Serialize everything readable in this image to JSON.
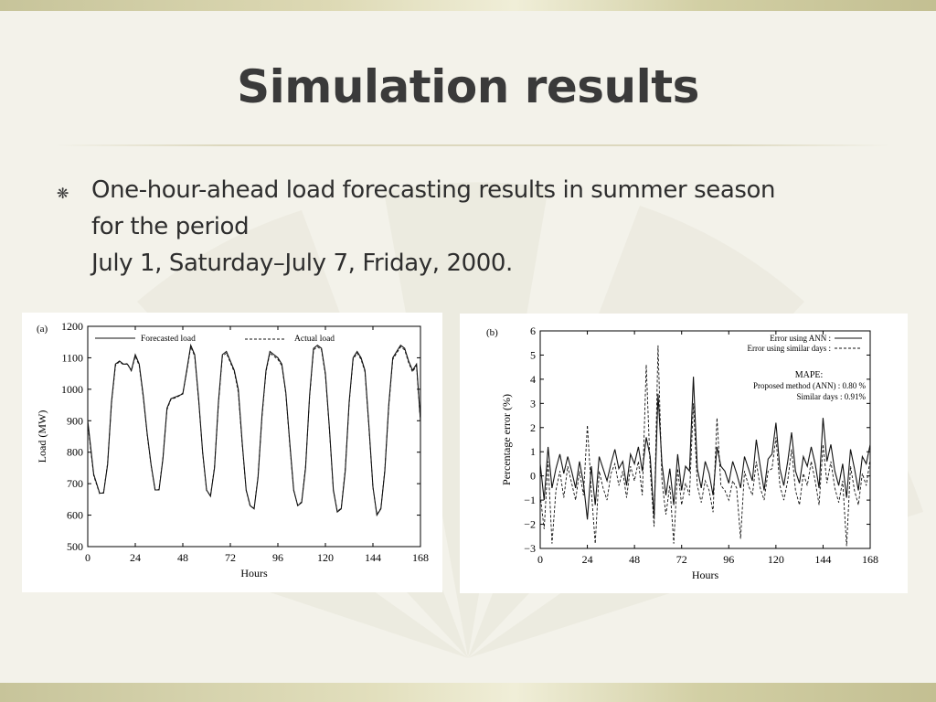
{
  "slide": {
    "title": "Simulation results",
    "bullet_symbol": "❋",
    "bullet_lines": [
      "One-hour-ahead load forecasting results in summer season",
      "for the period",
      "July 1, Saturday–July 7, Friday, 2000."
    ]
  },
  "colors": {
    "background": "#f3f2ea",
    "band": "#d2cfa4",
    "text": "#2e2e2e"
  },
  "chart_data": [
    {
      "type": "line",
      "panel_label": "(a)",
      "xlabel": "Hours",
      "ylabel": "Load (MW)",
      "xlim": [
        0,
        168
      ],
      "ylim": [
        500,
        1200
      ],
      "xticks": [
        0,
        24,
        48,
        72,
        96,
        120,
        144,
        168
      ],
      "yticks": [
        500,
        600,
        700,
        800,
        900,
        1000,
        1100,
        1200
      ],
      "legend": "top",
      "grid": false,
      "series": [
        {
          "name": "Forecasted load",
          "style": "solid",
          "x": [
            0,
            3,
            6,
            8,
            10,
            12,
            14,
            16,
            18,
            20,
            22,
            24,
            26,
            28,
            30,
            32,
            34,
            36,
            38,
            40,
            42,
            44,
            46,
            48,
            50,
            52,
            54,
            56,
            58,
            60,
            62,
            64,
            66,
            68,
            70,
            72,
            74,
            76,
            78,
            80,
            82,
            84,
            86,
            88,
            90,
            92,
            94,
            96,
            98,
            100,
            102,
            104,
            106,
            108,
            110,
            112,
            114,
            116,
            118,
            120,
            122,
            124,
            126,
            128,
            130,
            132,
            134,
            136,
            138,
            140,
            142,
            144,
            146,
            148,
            150,
            152,
            154,
            156,
            158,
            160,
            162,
            164,
            166,
            168
          ],
          "y": [
            900,
            730,
            670,
            670,
            760,
            960,
            1080,
            1090,
            1080,
            1080,
            1060,
            1110,
            1080,
            980,
            860,
            760,
            680,
            680,
            780,
            940,
            970,
            975,
            980,
            985,
            1060,
            1140,
            1110,
            970,
            800,
            680,
            660,
            750,
            960,
            1110,
            1120,
            1090,
            1060,
            1000,
            830,
            680,
            630,
            620,
            720,
            920,
            1060,
            1120,
            1110,
            1100,
            1080,
            990,
            830,
            680,
            630,
            640,
            750,
            980,
            1130,
            1140,
            1130,
            1050,
            880,
            680,
            610,
            620,
            740,
            960,
            1100,
            1120,
            1100,
            1060,
            880,
            690,
            600,
            620,
            740,
            950,
            1100,
            1120,
            1140,
            1130,
            1090,
            1060,
            1080,
            900
          ]
        },
        {
          "name": "Actual load",
          "style": "dashed",
          "x": [
            0,
            3,
            6,
            8,
            10,
            12,
            14,
            16,
            18,
            20,
            22,
            24,
            26,
            28,
            30,
            32,
            34,
            36,
            38,
            40,
            42,
            44,
            46,
            48,
            50,
            52,
            54,
            56,
            58,
            60,
            62,
            64,
            66,
            68,
            70,
            72,
            74,
            76,
            78,
            80,
            82,
            84,
            86,
            88,
            90,
            92,
            94,
            96,
            98,
            100,
            102,
            104,
            106,
            108,
            110,
            112,
            114,
            116,
            118,
            120,
            122,
            124,
            126,
            128,
            130,
            132,
            134,
            136,
            138,
            140,
            142,
            144,
            146,
            148,
            150,
            152,
            154,
            156,
            158,
            160,
            162,
            164,
            166,
            168
          ],
          "y": [
            890,
            725,
            668,
            672,
            765,
            955,
            1075,
            1088,
            1078,
            1082,
            1058,
            1105,
            1075,
            975,
            855,
            758,
            678,
            682,
            785,
            935,
            968,
            972,
            978,
            988,
            1055,
            1135,
            1105,
            965,
            798,
            678,
            662,
            755,
            955,
            1105,
            1115,
            1085,
            1055,
            990,
            825,
            678,
            628,
            622,
            725,
            915,
            1055,
            1115,
            1105,
            1095,
            1075,
            985,
            825,
            678,
            632,
            642,
            755,
            975,
            1125,
            1135,
            1125,
            1045,
            875,
            678,
            612,
            622,
            745,
            955,
            1095,
            1115,
            1095,
            1055,
            875,
            688,
            602,
            622,
            745,
            945,
            1095,
            1115,
            1135,
            1125,
            1085,
            1055,
            1075,
            895
          ]
        }
      ]
    },
    {
      "type": "line",
      "panel_label": "(b)",
      "xlabel": "Hours",
      "ylabel": "Percentage error (%)",
      "xlim": [
        0,
        168
      ],
      "ylim": [
        -3,
        6
      ],
      "xticks": [
        0,
        24,
        48,
        72,
        96,
        120,
        144,
        168
      ],
      "yticks": [
        -3,
        -2,
        -1,
        0,
        1,
        2,
        3,
        4,
        5,
        6
      ],
      "legend": "top-right",
      "grid": false,
      "annotation": {
        "heading": "MAPE:",
        "lines": [
          "Proposed method (ANN) : 0.80 %",
          "Similar days : 0.91%"
        ]
      },
      "series": [
        {
          "name": "Error using ANN :",
          "style": "solid",
          "x": [
            0,
            2,
            4,
            6,
            8,
            10,
            12,
            14,
            16,
            18,
            20,
            22,
            24,
            26,
            28,
            30,
            32,
            34,
            36,
            38,
            40,
            42,
            44,
            46,
            48,
            50,
            52,
            54,
            56,
            58,
            60,
            62,
            64,
            66,
            68,
            70,
            72,
            74,
            76,
            78,
            80,
            82,
            84,
            86,
            88,
            90,
            92,
            94,
            96,
            98,
            100,
            102,
            104,
            106,
            108,
            110,
            112,
            114,
            116,
            118,
            120,
            122,
            124,
            126,
            128,
            130,
            132,
            134,
            136,
            138,
            140,
            142,
            144,
            146,
            148,
            150,
            152,
            154,
            156,
            158,
            160,
            162,
            164,
            166,
            168
          ],
          "y": [
            0.5,
            -1.0,
            1.2,
            -0.5,
            0.3,
            0.9,
            0.1,
            0.8,
            0.2,
            -0.5,
            0.6,
            -0.3,
            -1.8,
            0.4,
            -1.2,
            0.8,
            0.3,
            -0.2,
            0.5,
            1.1,
            0.3,
            0.6,
            -0.4,
            0.9,
            0.5,
            1.2,
            0.2,
            1.6,
            0.8,
            -1.7,
            3.4,
            0.5,
            -0.8,
            0.3,
            -1.2,
            0.9,
            -0.6,
            0.4,
            0.2,
            4.1,
            0.3,
            -0.5,
            0.6,
            0.1,
            -0.8,
            1.2,
            0.4,
            0.2,
            -0.3,
            0.6,
            0.1,
            -0.5,
            0.8,
            0.3,
            -0.2,
            1.5,
            0.4,
            -0.6,
            0.7,
            0.9,
            2.2,
            0.3,
            -0.4,
            0.6,
            1.8,
            0.2,
            -0.3,
            0.8,
            0.4,
            1.2,
            0.5,
            -0.5,
            2.4,
            0.6,
            1.3,
            0.2,
            -0.4,
            0.5,
            -0.9,
            1.1,
            0.3,
            -0.6,
            0.8,
            0.5,
            1.3
          ]
        },
        {
          "name": "Error using similar days :",
          "style": "dashed",
          "x": [
            0,
            2,
            4,
            6,
            8,
            10,
            12,
            14,
            16,
            18,
            20,
            22,
            24,
            26,
            28,
            30,
            32,
            34,
            36,
            38,
            40,
            42,
            44,
            46,
            48,
            50,
            52,
            54,
            56,
            58,
            60,
            62,
            64,
            66,
            68,
            70,
            72,
            74,
            76,
            78,
            80,
            82,
            84,
            86,
            88,
            90,
            92,
            94,
            96,
            98,
            100,
            102,
            104,
            106,
            108,
            110,
            112,
            114,
            116,
            118,
            120,
            122,
            124,
            126,
            128,
            130,
            132,
            134,
            136,
            138,
            140,
            142,
            144,
            146,
            148,
            150,
            152,
            154,
            156,
            158,
            160,
            162,
            164,
            166,
            168
          ],
          "y": [
            -0.8,
            -2.2,
            0.6,
            -2.8,
            -0.6,
            0.2,
            -0.9,
            0.4,
            -0.3,
            -1.0,
            0.2,
            -0.8,
            2.1,
            -0.6,
            -2.8,
            0.2,
            -0.5,
            -1.0,
            0.1,
            0.5,
            -0.4,
            0.2,
            -0.9,
            0.4,
            -0.2,
            0.6,
            -0.8,
            4.6,
            0.3,
            -2.1,
            5.4,
            -0.2,
            -1.6,
            -0.4,
            -2.8,
            0.3,
            -1.2,
            -0.3,
            -0.8,
            3.0,
            -0.4,
            -1.1,
            -0.2,
            -0.6,
            -1.5,
            2.4,
            -0.4,
            -0.6,
            -1.0,
            -0.2,
            -0.5,
            -2.6,
            0.2,
            -0.4,
            -0.8,
            0.6,
            -0.5,
            -1.0,
            0.2,
            0.3,
            1.6,
            -0.4,
            -1.0,
            -0.2,
            1.1,
            -0.6,
            -1.2,
            0.1,
            -0.4,
            0.6,
            -0.2,
            -1.2,
            1.3,
            -0.3,
            0.6,
            -0.5,
            -1.1,
            -0.2,
            -2.9,
            0.4,
            -0.6,
            -1.2,
            0.1,
            -0.4,
            0.7
          ]
        }
      ]
    }
  ]
}
